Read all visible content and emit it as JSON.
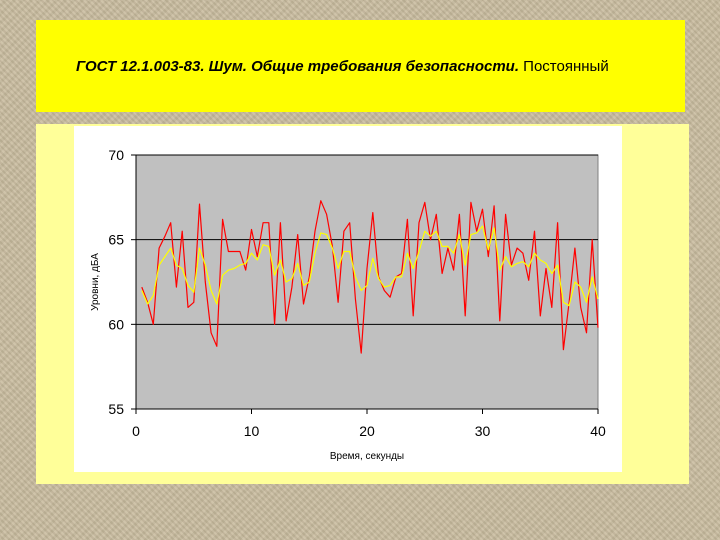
{
  "slide": {
    "title_part1": "ГОСТ 12.1.003-83. Шум. Общие требования безопасности.",
    "title_part2": " Постоянный"
  },
  "colors": {
    "title_bg": "#ffff00",
    "chart_area_bg": "#ffff99",
    "plot_bg": "#c0c0c0",
    "series_red": "#ff0000",
    "series_yellow": "#ffff00"
  },
  "chart_data": {
    "type": "line",
    "xlabel": "Время, секунды",
    "ylabel": "Уровни, дБА",
    "xlim": [
      0,
      40
    ],
    "ylim": [
      55,
      70
    ],
    "xticks": [
      0,
      10,
      20,
      30,
      40
    ],
    "yticks": [
      55,
      60,
      65,
      70
    ],
    "grid": "horizontal",
    "series": [
      {
        "color": "#ff0000",
        "x": [
          0.5,
          1,
          1.5,
          2,
          2.5,
          3,
          3.5,
          4,
          4.5,
          5,
          5.5,
          6,
          6.5,
          7,
          7.5,
          8,
          8.5,
          9,
          9.5,
          10,
          10.5,
          11,
          11.5,
          12,
          12.5,
          13,
          13.5,
          14,
          14.5,
          15,
          15.5,
          16,
          16.5,
          17,
          17.5,
          18,
          18.5,
          19,
          19.5,
          20,
          20.5,
          21,
          21.5,
          22,
          22.5,
          23,
          23.5,
          24,
          24.5,
          25,
          25.5,
          26,
          26.5,
          27,
          27.5,
          28,
          28.5,
          29,
          29.5,
          30,
          30.5,
          31,
          31.5,
          32,
          32.5,
          33,
          33.5,
          34,
          34.5,
          35,
          35.5,
          36,
          36.5,
          37,
          37.5,
          38,
          38.5,
          39,
          39.5,
          40
        ],
        "values": [
          62.2,
          61.3,
          60,
          64.5,
          65.2,
          66,
          62.2,
          65.5,
          61,
          61.3,
          67.1,
          62.5,
          59.5,
          58.7,
          66.2,
          64.3,
          64.3,
          64.3,
          63.2,
          65.6,
          64,
          66,
          66,
          60,
          66,
          60.2,
          62.2,
          65.3,
          61.2,
          62.8,
          65.5,
          67.3,
          66.5,
          64.6,
          61.3,
          65.5,
          66,
          61.5,
          58.3,
          63.3,
          66.6,
          62.8,
          62,
          61.6,
          62.8,
          63,
          66.2,
          60.5,
          66,
          67.2,
          65,
          66.5,
          63,
          64.5,
          63.2,
          66.5,
          60.5,
          67.2,
          65.5,
          66.8,
          64,
          67,
          60.2,
          66.5,
          63.5,
          64.5,
          64.2,
          62.6,
          65.5,
          60.5,
          63.3,
          61,
          66,
          58.5,
          61.3,
          64.5,
          61,
          59.5,
          65,
          59.8
        ]
      },
      {
        "color": "#ffff00",
        "x": [
          0.5,
          1,
          1.5,
          2,
          2.5,
          3,
          3.5,
          4,
          4.5,
          5,
          5.5,
          6,
          6.5,
          7,
          7.5,
          8,
          8.5,
          9,
          9.5,
          10,
          10.5,
          11,
          11.5,
          12,
          12.5,
          13,
          13.5,
          14,
          14.5,
          15,
          15.5,
          16,
          16.5,
          17,
          17.5,
          18,
          18.5,
          19,
          19.5,
          20,
          20.5,
          21,
          21.5,
          22,
          22.5,
          23,
          23.5,
          24,
          24.5,
          25,
          25.5,
          26,
          26.5,
          27,
          27.5,
          28,
          28.5,
          29,
          29.5,
          30,
          30.5,
          31,
          31.5,
          32,
          32.5,
          33,
          33.5,
          34,
          34.5,
          35,
          35.5,
          36,
          36.5,
          37,
          37.5,
          38,
          38.5,
          39,
          39.5,
          40
        ],
        "values": [
          62,
          61.2,
          61.7,
          63.5,
          64,
          64.5,
          63.5,
          63.3,
          62.3,
          61.9,
          64.5,
          63.5,
          62,
          61.2,
          62.9,
          63.2,
          63.3,
          63.5,
          63.6,
          64.2,
          63.8,
          64.7,
          64.6,
          62.9,
          63.8,
          62.5,
          62.7,
          63.6,
          62.3,
          62.5,
          64.2,
          65.4,
          65.3,
          64.5,
          63.3,
          64.3,
          64.3,
          62.8,
          62,
          62.3,
          63.9,
          62.7,
          62.2,
          62.3,
          62.8,
          62.8,
          64.2,
          63.3,
          64.3,
          65.5,
          65.2,
          65.5,
          64.6,
          64.6,
          64.2,
          65.3,
          63.5,
          65.3,
          65.4,
          65.8,
          64.4,
          65.7,
          63.2,
          64,
          63.4,
          63.6,
          63.7,
          63.4,
          64.2,
          63.8,
          63.6,
          63,
          63.5,
          61.3,
          61.1,
          62.5,
          62.2,
          61.3,
          62.8,
          61.5
        ]
      }
    ]
  }
}
